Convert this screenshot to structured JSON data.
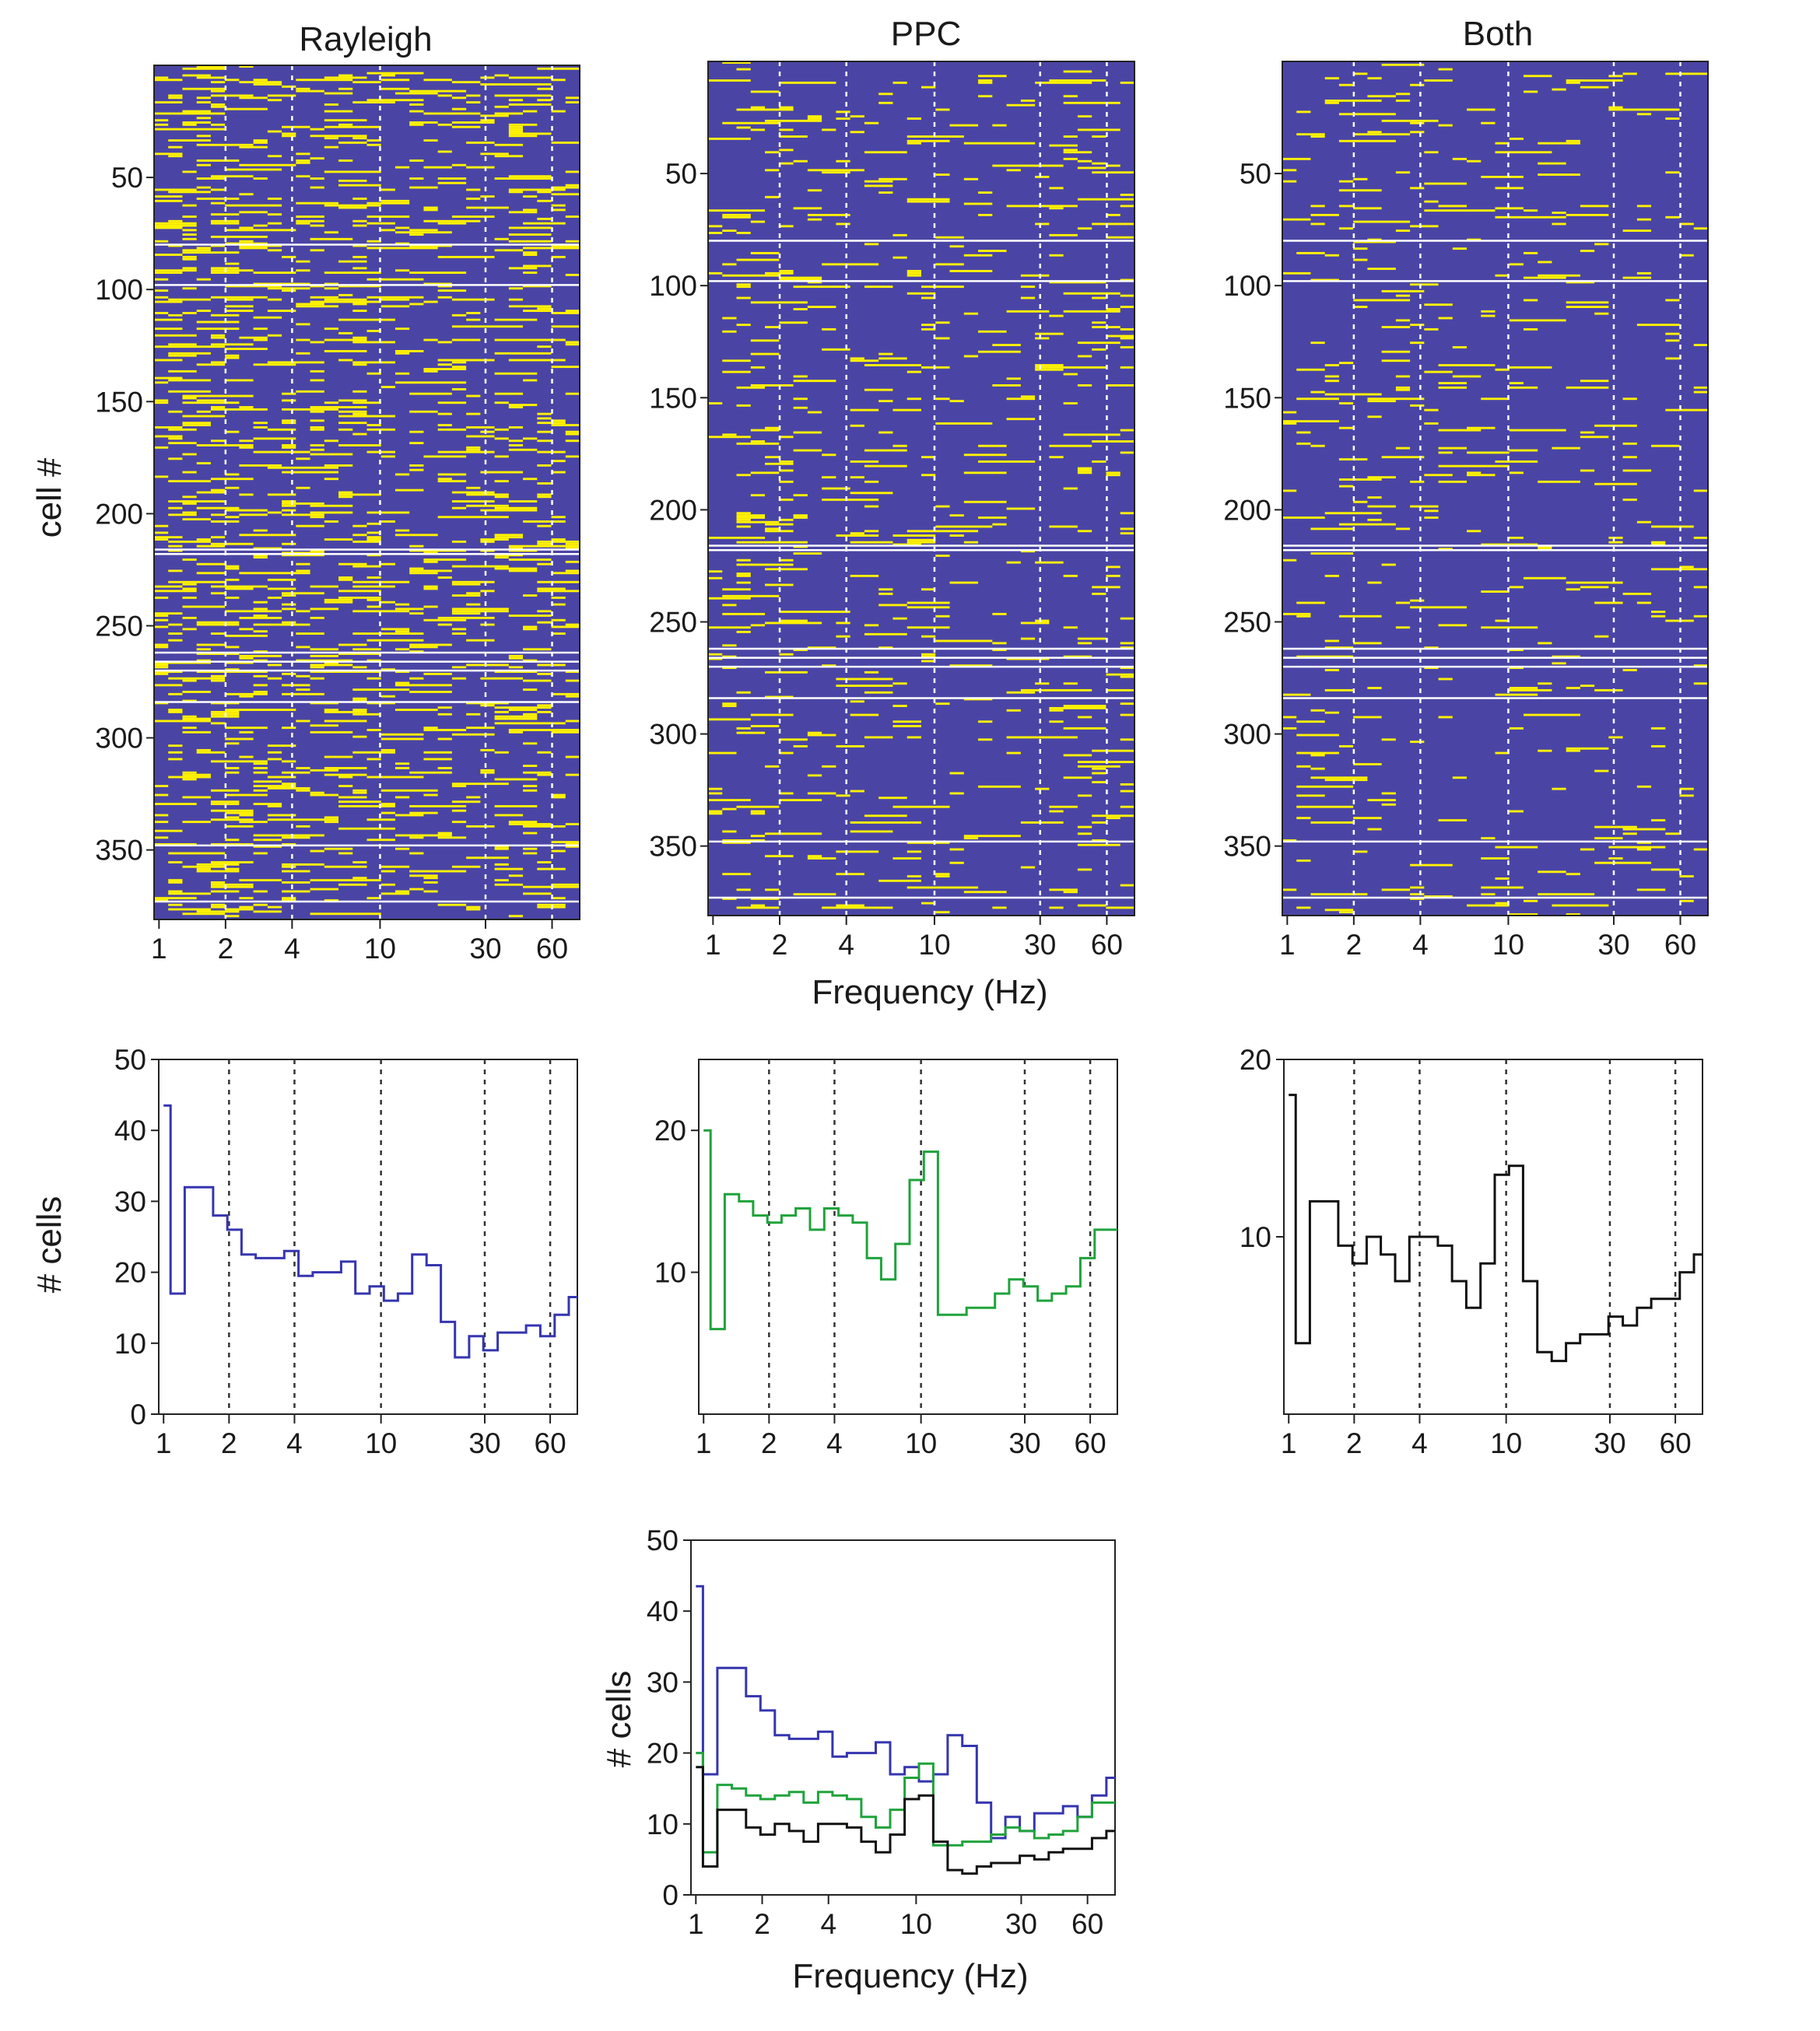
{
  "colors": {
    "raster_background": "#4a45a5",
    "raster_significant": "#fff200",
    "rayleigh": "#3535b0",
    "ppc": "#1fa33b",
    "both": "#111111",
    "frame": "#222222"
  },
  "common": {
    "frequency_ticks": [
      1,
      2,
      4,
      10,
      30,
      60
    ],
    "cell_ticks": [
      50,
      100,
      150,
      200,
      250,
      300,
      350
    ],
    "frequency_label": "Frequency (Hz)",
    "cell_label": "cell #",
    "count_label": "# cells"
  },
  "chart_data": [
    {
      "type": "heatmap",
      "title": "Rayleigh",
      "xlabel": "",
      "ylabel": "cell #",
      "x_scale": "log",
      "xlim_hz": [
        0.95,
        80
      ],
      "ylim_cells": [
        1,
        381
      ],
      "n_cells": 381,
      "n_freq_bins": 30,
      "significant_fraction": 0.22,
      "gridlines_hz": [
        2,
        4,
        10,
        30,
        60
      ],
      "separator_rows": [
        80,
        98,
        216,
        218,
        262,
        266,
        270,
        284,
        348,
        373
      ]
    },
    {
      "type": "heatmap",
      "title": "PPC",
      "xlabel": "Frequency (Hz)",
      "ylabel": "",
      "x_scale": "log",
      "xlim_hz": [
        0.95,
        80
      ],
      "ylim_cells": [
        1,
        381
      ],
      "n_cells": 381,
      "n_freq_bins": 30,
      "significant_fraction": 0.09,
      "gridlines_hz": [
        2,
        4,
        10,
        30,
        60
      ],
      "separator_rows": [
        80,
        98,
        216,
        218,
        262,
        266,
        270,
        284,
        348,
        373
      ]
    },
    {
      "type": "heatmap",
      "title": "Both",
      "xlabel": "",
      "ylabel": "",
      "x_scale": "log",
      "xlim_hz": [
        0.95,
        80
      ],
      "ylim_cells": [
        1,
        381
      ],
      "n_cells": 381,
      "n_freq_bins": 30,
      "significant_fraction": 0.07,
      "gridlines_hz": [
        2,
        4,
        10,
        30,
        60
      ],
      "separator_rows": [
        80,
        98,
        216,
        218,
        262,
        266,
        270,
        284,
        348,
        373
      ]
    },
    {
      "type": "line",
      "title": "",
      "xlabel": "",
      "ylabel": "# cells",
      "x_scale": "log",
      "xlim": [
        0.95,
        80
      ],
      "ylim": [
        0,
        50
      ],
      "y_ticks": [
        0,
        10,
        20,
        30,
        40,
        50
      ],
      "gridlines_hz": [
        2,
        4,
        10,
        30,
        60
      ],
      "x": [
        1.0,
        1.16,
        1.35,
        1.57,
        1.82,
        2.12,
        2.46,
        2.86,
        3.33,
        3.87,
        4.5,
        5.23,
        6.08,
        7.07,
        8.22,
        9.56,
        11.1,
        12.9,
        15.0,
        17.5,
        20.3,
        23.6,
        27.4,
        31.9,
        37.1,
        43.1,
        50.1,
        58.3,
        67.8,
        78.8
      ],
      "series": [
        {
          "color_key": "rayleigh",
          "values": [
            43.5,
            17,
            32,
            32,
            28,
            26,
            22.5,
            22,
            22,
            23,
            19.5,
            20,
            20,
            21.5,
            17,
            18,
            16,
            17,
            22.5,
            21,
            13,
            8,
            11,
            9,
            11.5,
            11.5,
            12.5,
            11,
            14,
            16.5
          ]
        }
      ]
    },
    {
      "type": "line",
      "title": "",
      "xlabel": "",
      "ylabel": "",
      "x_scale": "log",
      "xlim": [
        0.95,
        80
      ],
      "ylim": [
        0,
        25
      ],
      "y_ticks": [
        10,
        20
      ],
      "gridlines_hz": [
        2,
        4,
        10,
        30,
        60
      ],
      "x": [
        1.0,
        1.16,
        1.35,
        1.57,
        1.82,
        2.12,
        2.46,
        2.86,
        3.33,
        3.87,
        4.5,
        5.23,
        6.08,
        7.07,
        8.22,
        9.56,
        11.1,
        12.9,
        15.0,
        17.5,
        20.3,
        23.6,
        27.4,
        31.9,
        37.1,
        43.1,
        50.1,
        58.3,
        67.8,
        78.8
      ],
      "series": [
        {
          "color_key": "ppc",
          "values": [
            20,
            6,
            15.5,
            15,
            14,
            13.5,
            14,
            14.5,
            13,
            14.5,
            14,
            13.5,
            11,
            9.5,
            12,
            16.5,
            18.5,
            7,
            7,
            7.5,
            7.5,
            8.5,
            9.5,
            9,
            8,
            8.5,
            9,
            11,
            13,
            13
          ]
        }
      ]
    },
    {
      "type": "line",
      "title": "",
      "xlabel": "",
      "ylabel": "",
      "x_scale": "log",
      "xlim": [
        0.95,
        80
      ],
      "ylim": [
        0,
        20
      ],
      "y_ticks": [
        10,
        20
      ],
      "gridlines_hz": [
        2,
        4,
        10,
        30,
        60
      ],
      "x": [
        1.0,
        1.16,
        1.35,
        1.57,
        1.82,
        2.12,
        2.46,
        2.86,
        3.33,
        3.87,
        4.5,
        5.23,
        6.08,
        7.07,
        8.22,
        9.56,
        11.1,
        12.9,
        15.0,
        17.5,
        20.3,
        23.6,
        27.4,
        31.9,
        37.1,
        43.1,
        50.1,
        58.3,
        67.8,
        78.8
      ],
      "series": [
        {
          "color_key": "both",
          "values": [
            18,
            4,
            12,
            12,
            9.5,
            8.5,
            10,
            9,
            7.5,
            10,
            10,
            9.5,
            7.5,
            6,
            8.5,
            13.5,
            14,
            7.5,
            3.5,
            3,
            4,
            4.5,
            4.5,
            5.5,
            5,
            6,
            6.5,
            6.5,
            8,
            9
          ]
        }
      ]
    },
    {
      "type": "line",
      "title": "",
      "xlabel": "Frequency (Hz)",
      "ylabel": "# cells",
      "x_scale": "log",
      "xlim": [
        0.95,
        80
      ],
      "ylim": [
        0,
        50
      ],
      "y_ticks": [
        0,
        10,
        20,
        30,
        40,
        50
      ],
      "gridlines_hz": [],
      "x": [
        1.0,
        1.16,
        1.35,
        1.57,
        1.82,
        2.12,
        2.46,
        2.86,
        3.33,
        3.87,
        4.5,
        5.23,
        6.08,
        7.07,
        8.22,
        9.56,
        11.1,
        12.9,
        15.0,
        17.5,
        20.3,
        23.6,
        27.4,
        31.9,
        37.1,
        43.1,
        50.1,
        58.3,
        67.8,
        78.8
      ],
      "series": [
        {
          "color_key": "rayleigh",
          "values": [
            43.5,
            17,
            32,
            32,
            28,
            26,
            22.5,
            22,
            22,
            23,
            19.5,
            20,
            20,
            21.5,
            17,
            18,
            16,
            17,
            22.5,
            21,
            13,
            8,
            11,
            9,
            11.5,
            11.5,
            12.5,
            11,
            14,
            16.5
          ]
        },
        {
          "color_key": "ppc",
          "values": [
            20,
            6,
            15.5,
            15,
            14,
            13.5,
            14,
            14.5,
            13,
            14.5,
            14,
            13.5,
            11,
            9.5,
            12,
            16.5,
            18.5,
            7,
            7,
            7.5,
            7.5,
            8.5,
            9.5,
            9,
            8,
            8.5,
            9,
            11,
            13,
            13
          ]
        },
        {
          "color_key": "both",
          "values": [
            18,
            4,
            12,
            12,
            9.5,
            8.5,
            10,
            9,
            7.5,
            10,
            10,
            9.5,
            7.5,
            6,
            8.5,
            13.5,
            14,
            7.5,
            3.5,
            3,
            4,
            4.5,
            4.5,
            5.5,
            5,
            6,
            6.5,
            6.5,
            8,
            9
          ]
        }
      ]
    }
  ]
}
